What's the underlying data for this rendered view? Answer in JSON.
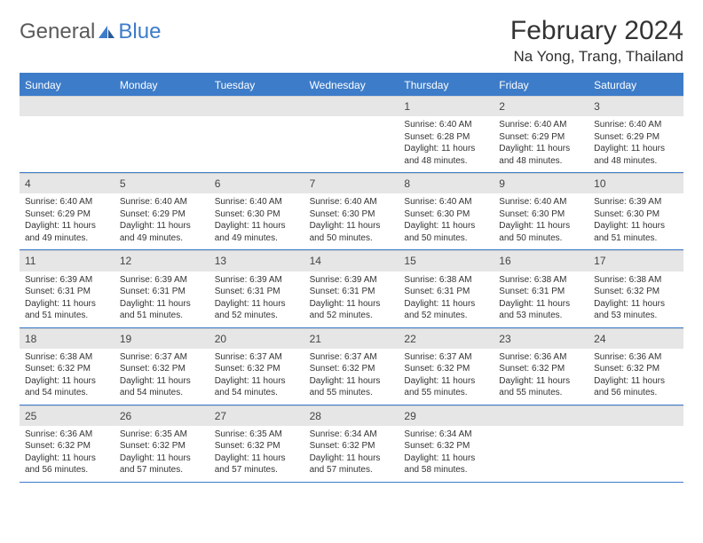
{
  "brand": {
    "part1": "General",
    "part2": "Blue"
  },
  "title": "February 2024",
  "location": "Na Yong, Trang, Thailand",
  "colors": {
    "accent": "#3d7cc9",
    "header_bg": "#3d7cc9",
    "daynum_bg": "#e6e6e6",
    "text": "#333333",
    "background": "#ffffff"
  },
  "weekdays": [
    "Sunday",
    "Monday",
    "Tuesday",
    "Wednesday",
    "Thursday",
    "Friday",
    "Saturday"
  ],
  "weeks": [
    [
      null,
      null,
      null,
      null,
      {
        "n": "1",
        "sunrise": "Sunrise: 6:40 AM",
        "sunset": "Sunset: 6:28 PM",
        "daylight1": "Daylight: 11 hours",
        "daylight2": "and 48 minutes."
      },
      {
        "n": "2",
        "sunrise": "Sunrise: 6:40 AM",
        "sunset": "Sunset: 6:29 PM",
        "daylight1": "Daylight: 11 hours",
        "daylight2": "and 48 minutes."
      },
      {
        "n": "3",
        "sunrise": "Sunrise: 6:40 AM",
        "sunset": "Sunset: 6:29 PM",
        "daylight1": "Daylight: 11 hours",
        "daylight2": "and 48 minutes."
      }
    ],
    [
      {
        "n": "4",
        "sunrise": "Sunrise: 6:40 AM",
        "sunset": "Sunset: 6:29 PM",
        "daylight1": "Daylight: 11 hours",
        "daylight2": "and 49 minutes."
      },
      {
        "n": "5",
        "sunrise": "Sunrise: 6:40 AM",
        "sunset": "Sunset: 6:29 PM",
        "daylight1": "Daylight: 11 hours",
        "daylight2": "and 49 minutes."
      },
      {
        "n": "6",
        "sunrise": "Sunrise: 6:40 AM",
        "sunset": "Sunset: 6:30 PM",
        "daylight1": "Daylight: 11 hours",
        "daylight2": "and 49 minutes."
      },
      {
        "n": "7",
        "sunrise": "Sunrise: 6:40 AM",
        "sunset": "Sunset: 6:30 PM",
        "daylight1": "Daylight: 11 hours",
        "daylight2": "and 50 minutes."
      },
      {
        "n": "8",
        "sunrise": "Sunrise: 6:40 AM",
        "sunset": "Sunset: 6:30 PM",
        "daylight1": "Daylight: 11 hours",
        "daylight2": "and 50 minutes."
      },
      {
        "n": "9",
        "sunrise": "Sunrise: 6:40 AM",
        "sunset": "Sunset: 6:30 PM",
        "daylight1": "Daylight: 11 hours",
        "daylight2": "and 50 minutes."
      },
      {
        "n": "10",
        "sunrise": "Sunrise: 6:39 AM",
        "sunset": "Sunset: 6:30 PM",
        "daylight1": "Daylight: 11 hours",
        "daylight2": "and 51 minutes."
      }
    ],
    [
      {
        "n": "11",
        "sunrise": "Sunrise: 6:39 AM",
        "sunset": "Sunset: 6:31 PM",
        "daylight1": "Daylight: 11 hours",
        "daylight2": "and 51 minutes."
      },
      {
        "n": "12",
        "sunrise": "Sunrise: 6:39 AM",
        "sunset": "Sunset: 6:31 PM",
        "daylight1": "Daylight: 11 hours",
        "daylight2": "and 51 minutes."
      },
      {
        "n": "13",
        "sunrise": "Sunrise: 6:39 AM",
        "sunset": "Sunset: 6:31 PM",
        "daylight1": "Daylight: 11 hours",
        "daylight2": "and 52 minutes."
      },
      {
        "n": "14",
        "sunrise": "Sunrise: 6:39 AM",
        "sunset": "Sunset: 6:31 PM",
        "daylight1": "Daylight: 11 hours",
        "daylight2": "and 52 minutes."
      },
      {
        "n": "15",
        "sunrise": "Sunrise: 6:38 AM",
        "sunset": "Sunset: 6:31 PM",
        "daylight1": "Daylight: 11 hours",
        "daylight2": "and 52 minutes."
      },
      {
        "n": "16",
        "sunrise": "Sunrise: 6:38 AM",
        "sunset": "Sunset: 6:31 PM",
        "daylight1": "Daylight: 11 hours",
        "daylight2": "and 53 minutes."
      },
      {
        "n": "17",
        "sunrise": "Sunrise: 6:38 AM",
        "sunset": "Sunset: 6:32 PM",
        "daylight1": "Daylight: 11 hours",
        "daylight2": "and 53 minutes."
      }
    ],
    [
      {
        "n": "18",
        "sunrise": "Sunrise: 6:38 AM",
        "sunset": "Sunset: 6:32 PM",
        "daylight1": "Daylight: 11 hours",
        "daylight2": "and 54 minutes."
      },
      {
        "n": "19",
        "sunrise": "Sunrise: 6:37 AM",
        "sunset": "Sunset: 6:32 PM",
        "daylight1": "Daylight: 11 hours",
        "daylight2": "and 54 minutes."
      },
      {
        "n": "20",
        "sunrise": "Sunrise: 6:37 AM",
        "sunset": "Sunset: 6:32 PM",
        "daylight1": "Daylight: 11 hours",
        "daylight2": "and 54 minutes."
      },
      {
        "n": "21",
        "sunrise": "Sunrise: 6:37 AM",
        "sunset": "Sunset: 6:32 PM",
        "daylight1": "Daylight: 11 hours",
        "daylight2": "and 55 minutes."
      },
      {
        "n": "22",
        "sunrise": "Sunrise: 6:37 AM",
        "sunset": "Sunset: 6:32 PM",
        "daylight1": "Daylight: 11 hours",
        "daylight2": "and 55 minutes."
      },
      {
        "n": "23",
        "sunrise": "Sunrise: 6:36 AM",
        "sunset": "Sunset: 6:32 PM",
        "daylight1": "Daylight: 11 hours",
        "daylight2": "and 55 minutes."
      },
      {
        "n": "24",
        "sunrise": "Sunrise: 6:36 AM",
        "sunset": "Sunset: 6:32 PM",
        "daylight1": "Daylight: 11 hours",
        "daylight2": "and 56 minutes."
      }
    ],
    [
      {
        "n": "25",
        "sunrise": "Sunrise: 6:36 AM",
        "sunset": "Sunset: 6:32 PM",
        "daylight1": "Daylight: 11 hours",
        "daylight2": "and 56 minutes."
      },
      {
        "n": "26",
        "sunrise": "Sunrise: 6:35 AM",
        "sunset": "Sunset: 6:32 PM",
        "daylight1": "Daylight: 11 hours",
        "daylight2": "and 57 minutes."
      },
      {
        "n": "27",
        "sunrise": "Sunrise: 6:35 AM",
        "sunset": "Sunset: 6:32 PM",
        "daylight1": "Daylight: 11 hours",
        "daylight2": "and 57 minutes."
      },
      {
        "n": "28",
        "sunrise": "Sunrise: 6:34 AM",
        "sunset": "Sunset: 6:32 PM",
        "daylight1": "Daylight: 11 hours",
        "daylight2": "and 57 minutes."
      },
      {
        "n": "29",
        "sunrise": "Sunrise: 6:34 AM",
        "sunset": "Sunset: 6:32 PM",
        "daylight1": "Daylight: 11 hours",
        "daylight2": "and 58 minutes."
      },
      null,
      null
    ]
  ]
}
